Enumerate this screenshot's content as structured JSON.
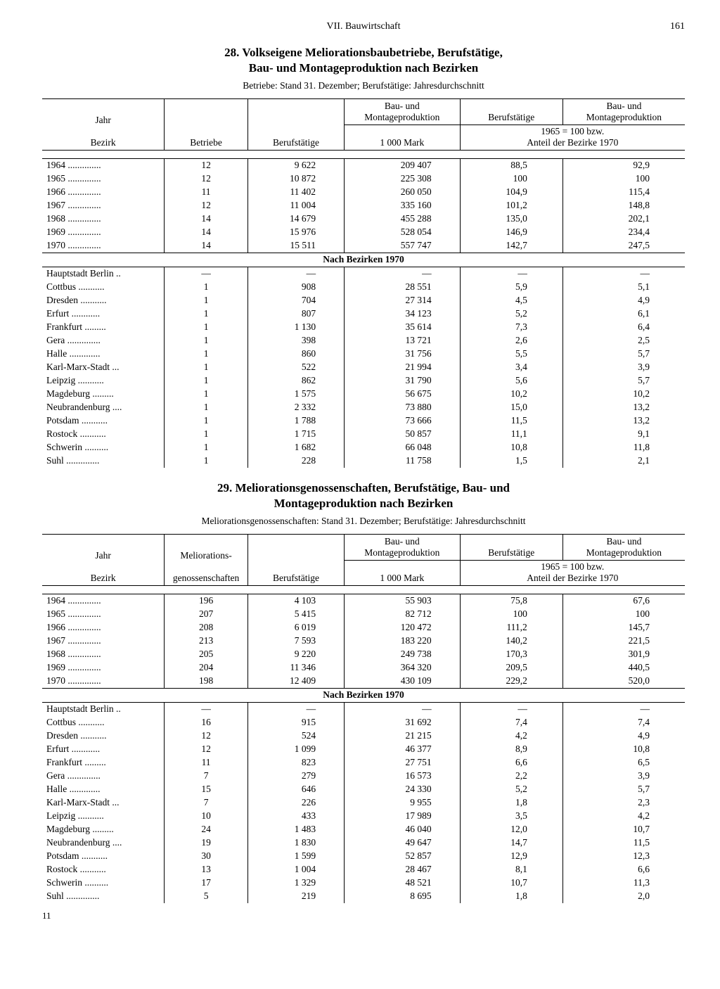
{
  "page": {
    "section_header": "VII. Bauwirtschaft",
    "page_number": "161",
    "footer_num": "11"
  },
  "table28": {
    "title_line1": "28. Volkseigene Meliorationsbaubetriebe, Berufstätige,",
    "title_line2": "Bau- und Montageproduktion nach Bezirken",
    "subtitle": "Betriebe: Stand 31. Dezember; Berufstätige: Jahresdurchschnitt",
    "headers": {
      "col1a": "Jahr",
      "col1b": "Bezirk",
      "col2": "Betriebe",
      "col3": "Berufstätige",
      "col4a": "Bau- und",
      "col4b": "Montageproduktion",
      "col4c": "1 000 Mark",
      "col5": "Berufstätige",
      "col6a": "Bau- und",
      "col6b": "Montageproduktion",
      "index_line1": "1965 = 100 bzw.",
      "index_line2": "Anteil der Bezirke 1970"
    },
    "year_rows": [
      [
        "1964",
        "12",
        "9 622",
        "209 407",
        "88,5",
        "92,9"
      ],
      [
        "1965",
        "12",
        "10 872",
        "225 308",
        "100",
        "100"
      ],
      [
        "1966",
        "11",
        "11 402",
        "260 050",
        "104,9",
        "115,4"
      ],
      [
        "1967",
        "12",
        "11 004",
        "335 160",
        "101,2",
        "148,8"
      ],
      [
        "1968",
        "14",
        "14 679",
        "455 288",
        "135,0",
        "202,1"
      ],
      [
        "1969",
        "14",
        "15 976",
        "528 054",
        "146,9",
        "234,4"
      ],
      [
        "1970",
        "14",
        "15 511",
        "557 747",
        "142,7",
        "247,5"
      ]
    ],
    "section_label": "Nach Bezirken 1970",
    "bezirk_rows": [
      [
        "Hauptstadt Berlin",
        "—",
        "—",
        "—",
        "—",
        "—"
      ],
      [
        "Cottbus",
        "1",
        "908",
        "28 551",
        "5,9",
        "5,1"
      ],
      [
        "Dresden",
        "1",
        "704",
        "27 314",
        "4,5",
        "4,9"
      ],
      [
        "Erfurt",
        "1",
        "807",
        "34 123",
        "5,2",
        "6,1"
      ],
      [
        "Frankfurt",
        "1",
        "1 130",
        "35 614",
        "7,3",
        "6,4"
      ],
      [
        "Gera",
        "1",
        "398",
        "13 721",
        "2,6",
        "2,5"
      ],
      [
        "Halle",
        "1",
        "860",
        "31 756",
        "5,5",
        "5,7"
      ],
      [
        "Karl-Marx-Stadt",
        "1",
        "522",
        "21 994",
        "3,4",
        "3,9"
      ],
      [
        "Leipzig",
        "1",
        "862",
        "31 790",
        "5,6",
        "5,7"
      ],
      [
        "Magdeburg",
        "1",
        "1 575",
        "56 675",
        "10,2",
        "10,2"
      ],
      [
        "Neubrandenburg",
        "1",
        "2 332",
        "73 880",
        "15,0",
        "13,2"
      ],
      [
        "Potsdam",
        "1",
        "1 788",
        "73 666",
        "11,5",
        "13,2"
      ],
      [
        "Rostock",
        "1",
        "1 715",
        "50 857",
        "11,1",
        "9,1"
      ],
      [
        "Schwerin",
        "1",
        "1 682",
        "66 048",
        "10,8",
        "11,8"
      ],
      [
        "Suhl",
        "1",
        "228",
        "11 758",
        "1,5",
        "2,1"
      ]
    ]
  },
  "table29": {
    "title_line1": "29. Meliorationsgenossenschaften, Berufstätige, Bau- und",
    "title_line2": "Montageproduktion nach Bezirken",
    "subtitle": "Meliorationsgenossenschaften: Stand 31. Dezember; Berufstätige: Jahresdurchschnitt",
    "headers": {
      "col1a": "Jahr",
      "col1b": "Bezirk",
      "col2a": "Meliorations-",
      "col2b": "genossenschaften",
      "col3": "Berufstätige",
      "col4a": "Bau- und",
      "col4b": "Montageproduktion",
      "col4c": "1 000 Mark",
      "col5": "Berufstätige",
      "col6a": "Bau- und",
      "col6b": "Montageproduktion",
      "index_line1": "1965 = 100 bzw.",
      "index_line2": "Anteil der Bezirke 1970"
    },
    "year_rows": [
      [
        "1964",
        "196",
        "4 103",
        "55 903",
        "75,8",
        "67,6"
      ],
      [
        "1965",
        "207",
        "5 415",
        "82 712",
        "100",
        "100"
      ],
      [
        "1966",
        "208",
        "6 019",
        "120 472",
        "111,2",
        "145,7"
      ],
      [
        "1967",
        "213",
        "7 593",
        "183 220",
        "140,2",
        "221,5"
      ],
      [
        "1968",
        "205",
        "9 220",
        "249 738",
        "170,3",
        "301,9"
      ],
      [
        "1969",
        "204",
        "11 346",
        "364 320",
        "209,5",
        "440,5"
      ],
      [
        "1970",
        "198",
        "12 409",
        "430 109",
        "229,2",
        "520,0"
      ]
    ],
    "section_label": "Nach Bezirken 1970",
    "bezirk_rows": [
      [
        "Hauptstadt Berlin",
        "—",
        "—",
        "—",
        "—",
        "—"
      ],
      [
        "Cottbus",
        "16",
        "915",
        "31 692",
        "7,4",
        "7,4"
      ],
      [
        "Dresden",
        "12",
        "524",
        "21 215",
        "4,2",
        "4,9"
      ],
      [
        "Erfurt",
        "12",
        "1 099",
        "46 377",
        "8,9",
        "10,8"
      ],
      [
        "Frankfurt",
        "11",
        "823",
        "27 751",
        "6,6",
        "6,5"
      ],
      [
        "Gera",
        "7",
        "279",
        "16 573",
        "2,2",
        "3,9"
      ],
      [
        "Halle",
        "15",
        "646",
        "24 330",
        "5,2",
        "5,7"
      ],
      [
        "Karl-Marx-Stadt",
        "7",
        "226",
        "9 955",
        "1,8",
        "2,3"
      ],
      [
        "Leipzig",
        "10",
        "433",
        "17 989",
        "3,5",
        "4,2"
      ],
      [
        "Magdeburg",
        "24",
        "1 483",
        "46 040",
        "12,0",
        "10,7"
      ],
      [
        "Neubrandenburg",
        "19",
        "1 830",
        "49 647",
        "14,7",
        "11,5"
      ],
      [
        "Potsdam",
        "30",
        "1 599",
        "52 857",
        "12,9",
        "12,3"
      ],
      [
        "Rostock",
        "13",
        "1 004",
        "28 467",
        "8,1",
        "6,6"
      ],
      [
        "Schwerin",
        "17",
        "1 329",
        "48 521",
        "10,7",
        "11,3"
      ],
      [
        "Suhl",
        "5",
        "219",
        "8 695",
        "1,8",
        "2,0"
      ]
    ]
  },
  "colwidths": {
    "c1": "19%",
    "c2": "13%",
    "c3": "15%",
    "c4": "18%",
    "c5": "16%",
    "c6": "19%"
  }
}
